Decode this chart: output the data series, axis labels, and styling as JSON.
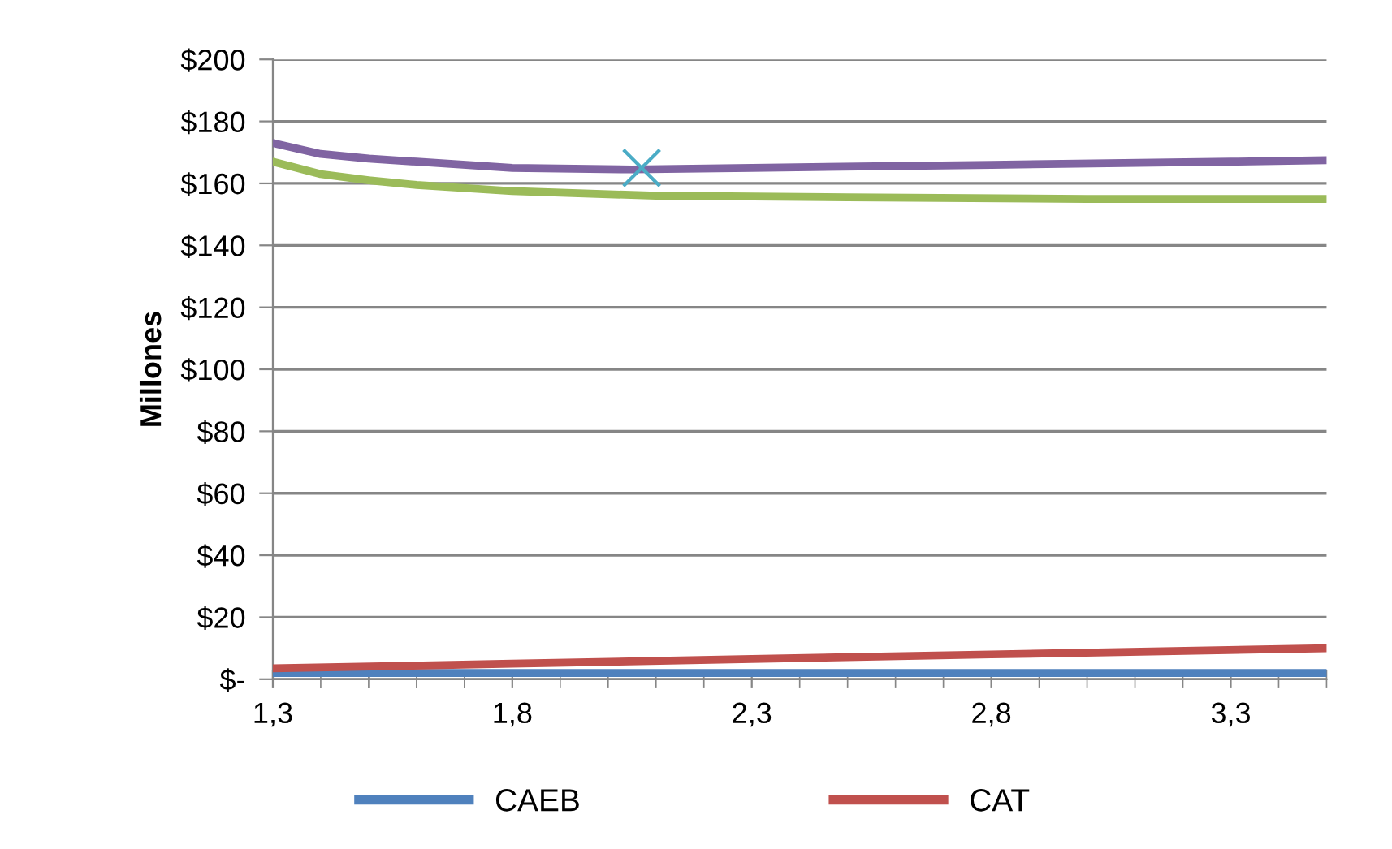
{
  "chart_data": {
    "type": "line",
    "ylabel": "Millones",
    "xlim": [
      1.3,
      3.5
    ],
    "xticks": [
      {
        "value": 1.3,
        "label": "1,3"
      },
      {
        "value": 1.8,
        "label": "1,8"
      },
      {
        "value": 2.3,
        "label": "2,3"
      },
      {
        "value": 2.8,
        "label": "2,8"
      },
      {
        "value": 3.3,
        "label": "3,3"
      }
    ],
    "ylim": [
      0,
      200
    ],
    "yticks": [
      {
        "value": 0,
        "label": "$-"
      },
      {
        "value": 20,
        "label": "$20"
      },
      {
        "value": 40,
        "label": "$40"
      },
      {
        "value": 60,
        "label": "$60"
      },
      {
        "value": 80,
        "label": "$80"
      },
      {
        "value": 100,
        "label": "$100"
      },
      {
        "value": 120,
        "label": "$120"
      },
      {
        "value": 140,
        "label": "$140"
      },
      {
        "value": 160,
        "label": "$160"
      },
      {
        "value": 180,
        "label": "$180"
      },
      {
        "value": 200,
        "label": "$200"
      }
    ],
    "grid": "y",
    "legend": "bottom",
    "marker": "none",
    "series": [
      {
        "name": "CAEB",
        "color": "#4f81bd",
        "x": [
          1.3,
          1.8,
          2.3,
          2.8,
          3.5
        ],
        "values": [
          2,
          2,
          2,
          2,
          2
        ]
      },
      {
        "name": "CAT",
        "color": "#c0504d",
        "x": [
          1.3,
          1.8,
          2.3,
          2.8,
          3.5
        ],
        "values": [
          3.5,
          5,
          6.5,
          8,
          10
        ]
      },
      {
        "color": "#8064a2",
        "x": [
          1.3,
          1.4,
          1.5,
          1.6,
          1.8,
          2.05,
          2.3,
          2.8,
          3.3,
          3.5
        ],
        "values": [
          173,
          169.5,
          168,
          167,
          165,
          164.5,
          165,
          166,
          167,
          167.5
        ]
      },
      {
        "color": "#9bbb59",
        "x": [
          1.3,
          1.4,
          1.5,
          1.6,
          1.8,
          2.1,
          2.5,
          3.0,
          3.5
        ],
        "values": [
          167,
          163,
          161,
          159.5,
          157.5,
          156,
          155.5,
          155,
          155
        ]
      },
      {
        "type": "scatter",
        "marker": "cross",
        "color": "#4bacc6",
        "x": [
          2.07
        ],
        "values": [
          165
        ]
      }
    ]
  }
}
